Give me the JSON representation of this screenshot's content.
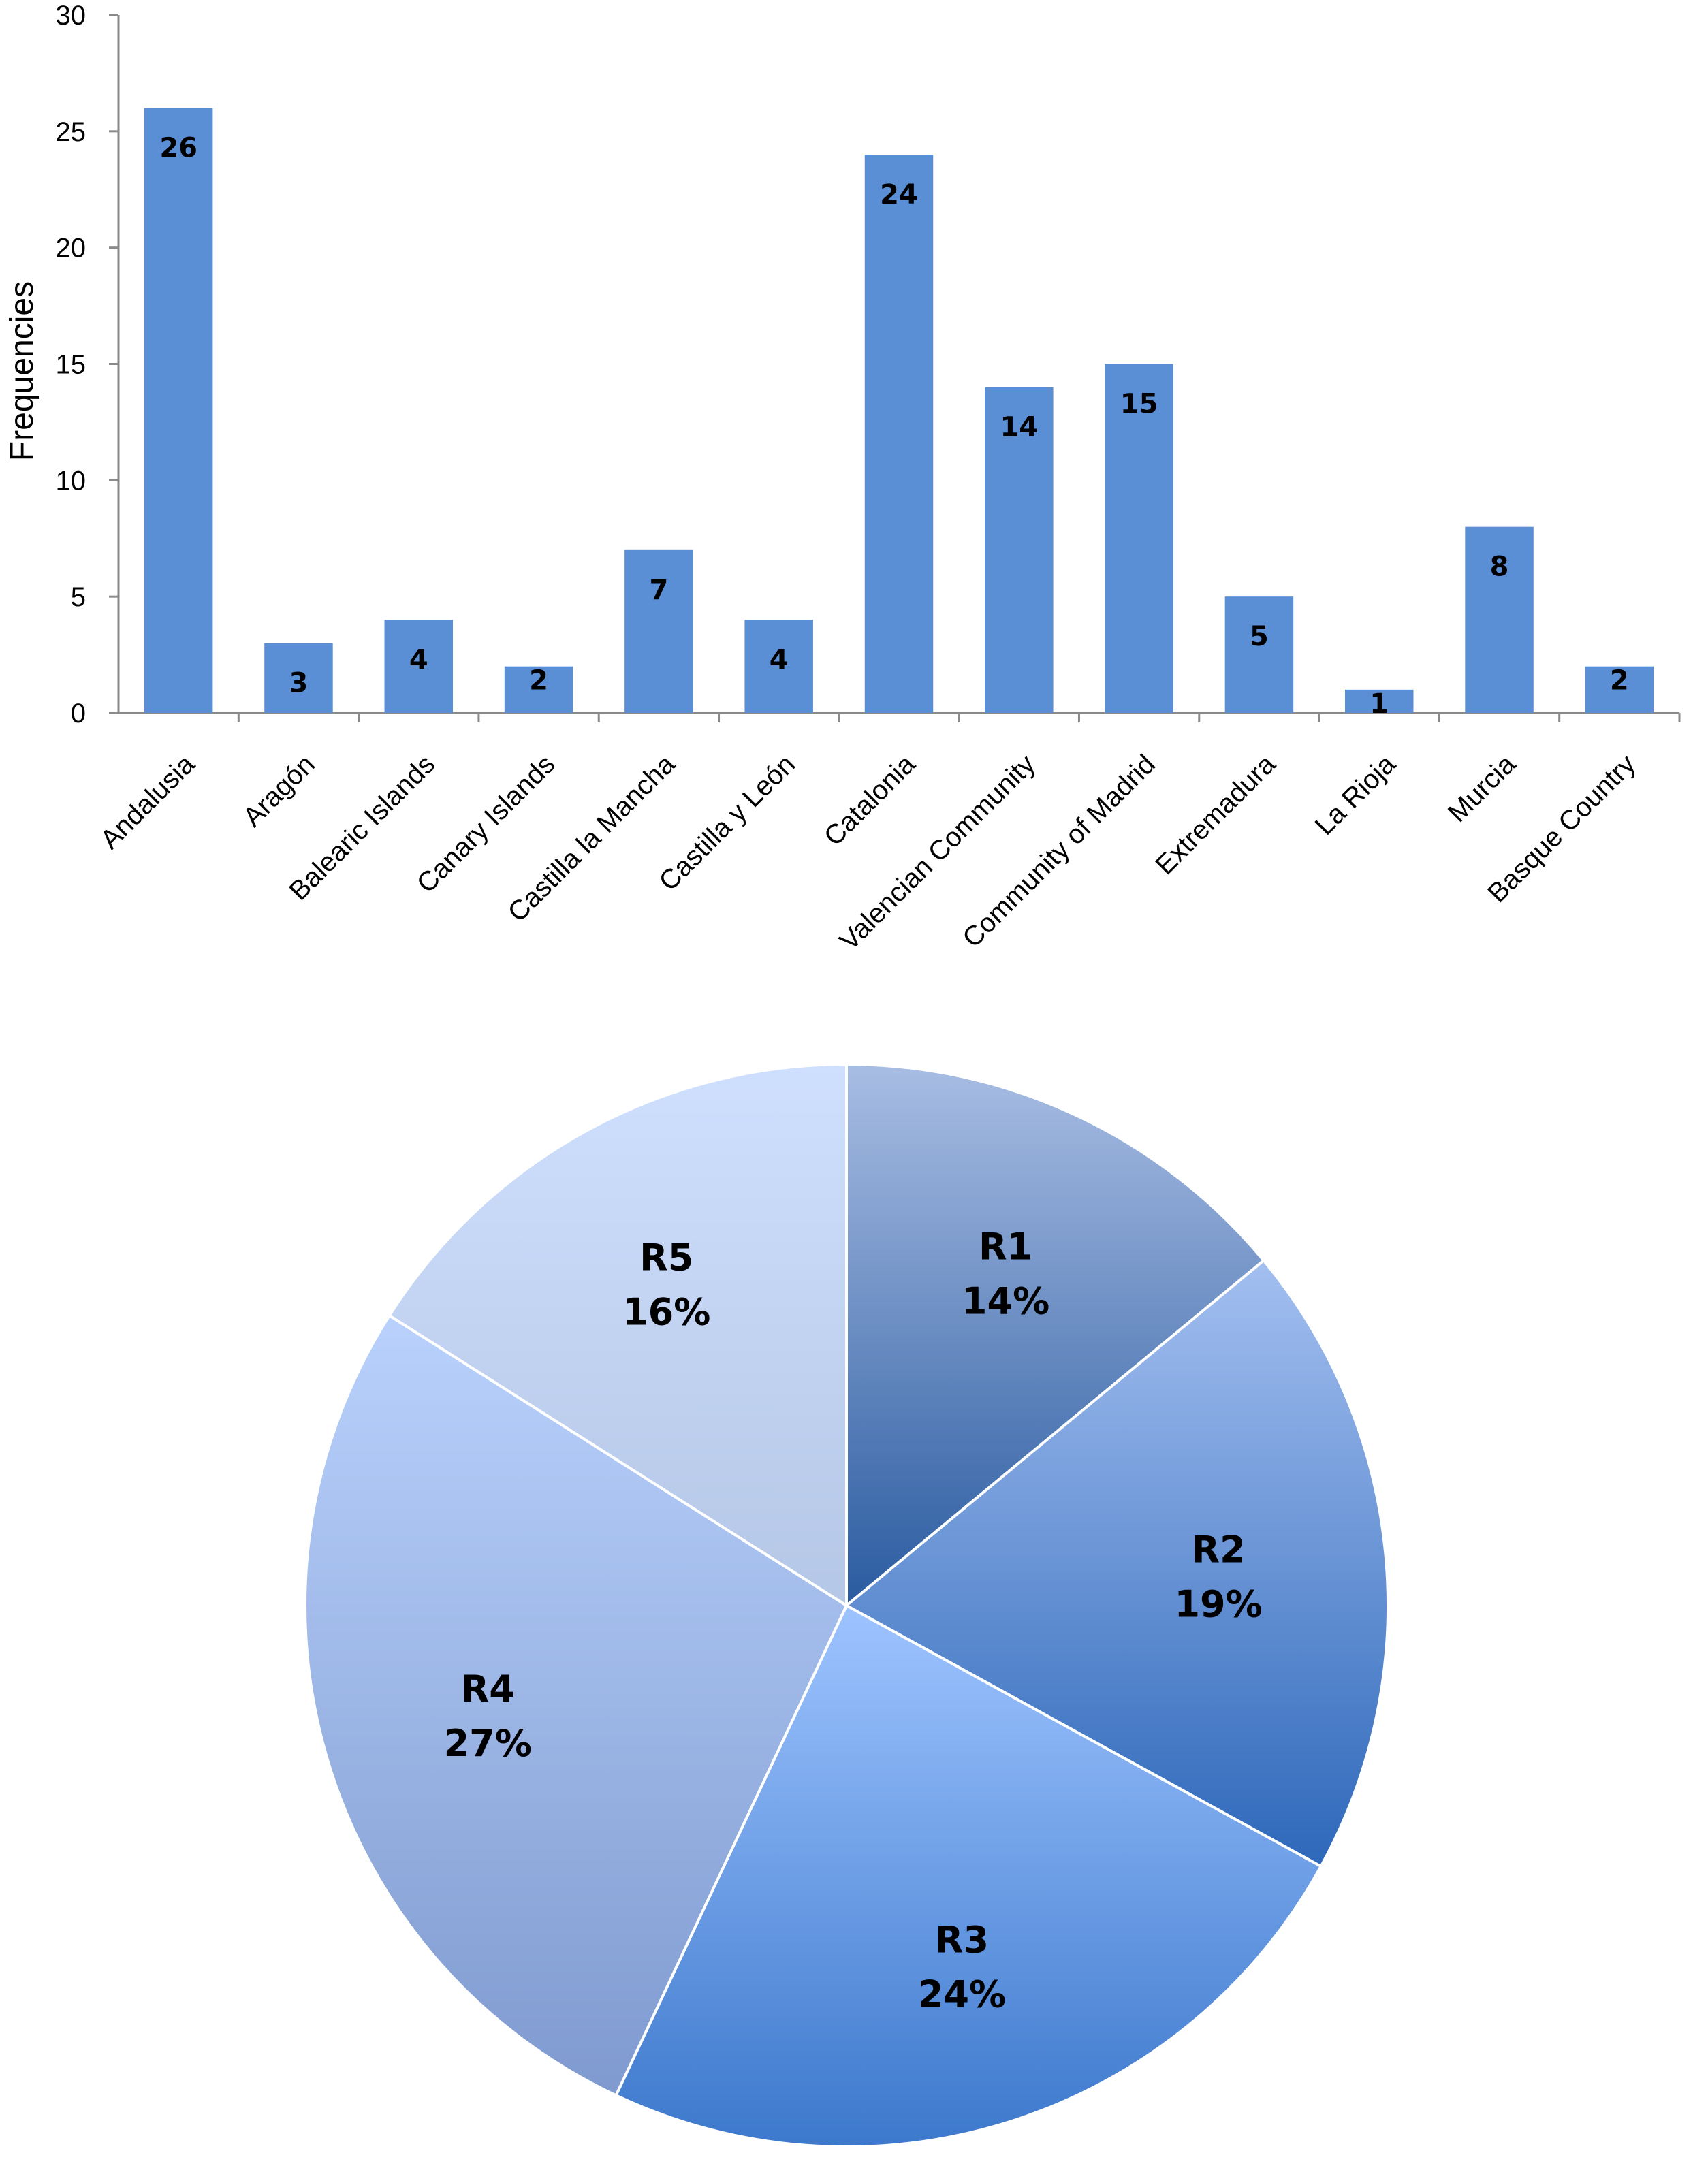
{
  "chart_data": [
    {
      "type": "bar",
      "ylabel": "Frequencies",
      "ylim": [
        0,
        30
      ],
      "yticks": [
        0,
        5,
        10,
        15,
        20,
        25,
        30
      ],
      "grid": false,
      "color": "#5A8FD6",
      "categories": [
        "Andalusia",
        "Aragón",
        "Balearic Islands",
        "Canary Islands",
        "Castilla la Mancha",
        "Castilla y León",
        "Catalonia",
        "Valencian Community",
        "Community of Madrid",
        "Extremadura",
        "La Rioja",
        "Murcia",
        "Basque Country"
      ],
      "values": [
        26,
        3,
        4,
        2,
        7,
        4,
        24,
        14,
        15,
        5,
        1,
        8,
        2
      ]
    },
    {
      "type": "pie",
      "slices": [
        {
          "name": "R1",
          "value": 14,
          "label": "14%",
          "color_top": "#A8BDE3",
          "color_bottom": "#2A5BA0"
        },
        {
          "name": "R2",
          "value": 19,
          "label": "19%",
          "color_top": "#A3BFF0",
          "color_bottom": "#2E68BA"
        },
        {
          "name": "R3",
          "value": 24,
          "label": "24%",
          "color_top": "#9EC4FF",
          "color_bottom": "#3C78CC"
        },
        {
          "name": "R4",
          "value": 27,
          "label": "27%",
          "color_top": "#B9D1FC",
          "color_bottom": "#7F9ACF"
        },
        {
          "name": "R5",
          "value": 16,
          "label": "16%",
          "color_top": "#CFDFFE",
          "color_bottom": "#B5C7E6"
        }
      ]
    }
  ]
}
